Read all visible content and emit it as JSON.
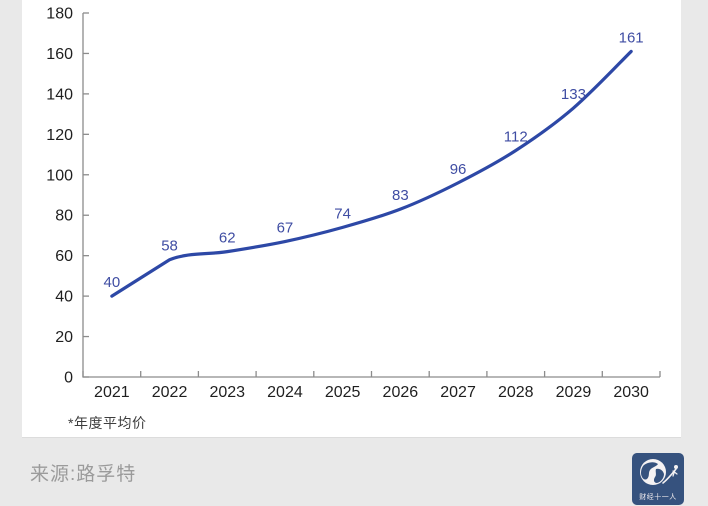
{
  "chart_data": {
    "type": "line",
    "categories": [
      "2021",
      "2022",
      "2023",
      "2024",
      "2025",
      "2026",
      "2027",
      "2028",
      "2029",
      "2030"
    ],
    "values": [
      40,
      58,
      62,
      67,
      74,
      83,
      96,
      112,
      133,
      161
    ],
    "title": "",
    "xlabel": "",
    "ylabel": "",
    "ylim": [
      0,
      180
    ],
    "ytick_step": 20,
    "grid": false,
    "legend": false,
    "point_labels_visible": true,
    "footnote": "*年度平均价",
    "colors": {
      "line": "#2d48a6",
      "point_label": "#3f4da3",
      "axis": "#8c8c8c",
      "tick_label": "#1f1f1f"
    }
  },
  "footer": {
    "source": "来源:路孚特",
    "logo_text": "财经十一人"
  }
}
